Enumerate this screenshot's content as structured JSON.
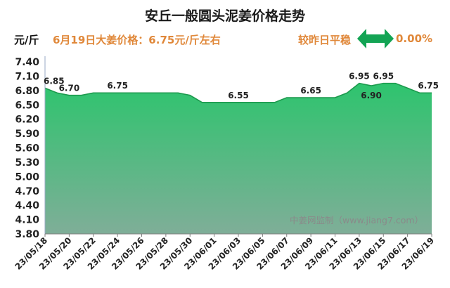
{
  "header": {
    "title": "安丘一般圆头泥姜价格走势",
    "unit": "元/斤",
    "price_text": "6月19日大姜价格：6.75元/斤左右",
    "compare_text": "较昨日平稳",
    "change_text": "0.00%"
  },
  "watermark": "中姜网监制（www.jiang7.com）",
  "colors": {
    "fill_top": "#2ec46e",
    "fill_bottom": "#7fae98",
    "line": "#1c9a4d",
    "accent": "#e0883a",
    "arrow": "#13a454"
  },
  "chart_data": {
    "type": "area",
    "title": "安丘一般圆头泥姜价格走势",
    "ylabel": "元/斤",
    "ylim": [
      3.8,
      7.4
    ],
    "yticks": [
      "7.40",
      "7.10",
      "6.80",
      "6.50",
      "6.20",
      "5.90",
      "5.60",
      "5.30",
      "5.00",
      "4.70",
      "4.40",
      "4.10",
      "3.80"
    ],
    "xticks": [
      "23/05/18",
      "23/05/20",
      "23/05/22",
      "23/05/24",
      "23/05/26",
      "23/05/28",
      "23/05/30",
      "23/06/01",
      "23/06/03",
      "23/06/05",
      "23/06/07",
      "23/06/09",
      "23/06/11",
      "23/06/13",
      "23/06/15",
      "23/06/17",
      "23/06/19"
    ],
    "x": [
      "23/05/18",
      "23/05/19",
      "23/05/20",
      "23/05/21",
      "23/05/22",
      "23/05/23",
      "23/05/24",
      "23/05/25",
      "23/05/26",
      "23/05/27",
      "23/05/28",
      "23/05/29",
      "23/05/30",
      "23/05/31",
      "23/06/01",
      "23/06/02",
      "23/06/03",
      "23/06/04",
      "23/06/05",
      "23/06/06",
      "23/06/07",
      "23/06/08",
      "23/06/09",
      "23/06/10",
      "23/06/11",
      "23/06/12",
      "23/06/13",
      "23/06/14",
      "23/06/15",
      "23/06/16",
      "23/06/17",
      "23/06/18",
      "23/06/19"
    ],
    "values": [
      6.85,
      6.75,
      6.7,
      6.7,
      6.75,
      6.75,
      6.75,
      6.75,
      6.75,
      6.75,
      6.75,
      6.75,
      6.7,
      6.55,
      6.55,
      6.55,
      6.55,
      6.55,
      6.55,
      6.55,
      6.65,
      6.65,
      6.65,
      6.65,
      6.65,
      6.75,
      6.95,
      6.9,
      6.95,
      6.95,
      6.85,
      6.75,
      6.75
    ],
    "data_labels": [
      {
        "x": "23/05/18",
        "text": "6.85",
        "pos": "above"
      },
      {
        "x": "23/05/20",
        "text": "6.70",
        "pos": "above"
      },
      {
        "x": "23/05/24",
        "text": "6.75",
        "pos": "above"
      },
      {
        "x": "23/06/03",
        "text": "6.55",
        "pos": "above"
      },
      {
        "x": "23/06/09",
        "text": "6.65",
        "pos": "above"
      },
      {
        "x": "23/06/13",
        "text": "6.95",
        "pos": "above"
      },
      {
        "x": "23/06/14",
        "text": "6.90",
        "pos": "below"
      },
      {
        "x": "23/06/15",
        "text": "6.95",
        "pos": "above"
      },
      {
        "x": "23/06/19",
        "text": "6.75",
        "pos": "above"
      }
    ]
  }
}
